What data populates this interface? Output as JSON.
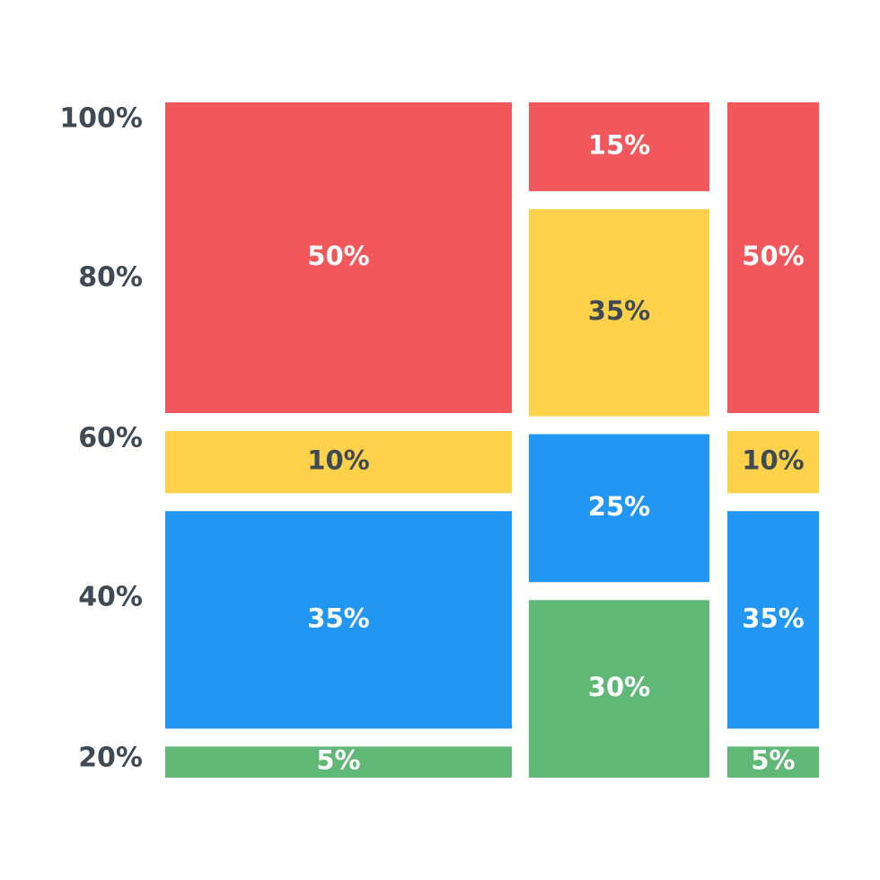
{
  "chart_data": {
    "type": "mosaic",
    "y_ticks": [
      "100%",
      "80%",
      "60%",
      "40%",
      "20%"
    ],
    "colors": {
      "red": "#f2575c",
      "yellow": "#fdd14a",
      "blue": "#2196f3",
      "green": "#5fb876",
      "light_text": "#ffffff",
      "dark_text": "#3f4a55",
      "axis_text": "#3f4a55"
    },
    "columns": [
      {
        "segments": [
          {
            "label": "50%",
            "value": 50,
            "color": "red"
          },
          {
            "label": "10%",
            "value": 10,
            "color": "yellow"
          },
          {
            "label": "35%",
            "value": 35,
            "color": "blue"
          },
          {
            "label": "5%",
            "value": 5,
            "color": "green"
          }
        ]
      },
      {
        "segments": [
          {
            "label": "15%",
            "value": 15,
            "color": "red"
          },
          {
            "label": "35%",
            "value": 35,
            "color": "yellow"
          },
          {
            "label": "25%",
            "value": 25,
            "color": "blue"
          },
          {
            "label": "30%",
            "value": 30,
            "color": "green"
          }
        ]
      },
      {
        "segments": [
          {
            "label": "50%",
            "value": 50,
            "color": "red"
          },
          {
            "label": "10%",
            "value": 10,
            "color": "yellow"
          },
          {
            "label": "35%",
            "value": 35,
            "color": "blue"
          },
          {
            "label": "5%",
            "value": 5,
            "color": "green"
          }
        ]
      }
    ]
  }
}
